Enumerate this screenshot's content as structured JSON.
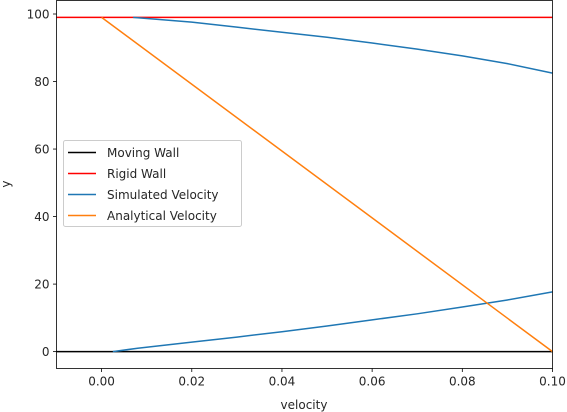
{
  "chart_data": {
    "type": "line",
    "title": "",
    "xlabel": "velocity",
    "ylabel": "y",
    "xlim": [
      -0.01,
      0.1
    ],
    "ylim": [
      -5,
      104
    ],
    "xticks": [
      0.0,
      0.02,
      0.04,
      0.06,
      0.08,
      0.1
    ],
    "xtick_labels": [
      "0.00",
      "0.02",
      "0.04",
      "0.06",
      "0.08",
      "0.10"
    ],
    "yticks": [
      0,
      20,
      40,
      60,
      80,
      100
    ],
    "ytick_labels": [
      "0",
      "20",
      "40",
      "60",
      "80",
      "100"
    ],
    "grid": false,
    "legend_position": "center-left",
    "series": [
      {
        "name": "Moving Wall",
        "color": "#000000",
        "segments": [
          {
            "x": [
              -0.01,
              0.1
            ],
            "y": [
              0,
              0
            ]
          }
        ]
      },
      {
        "name": "Rigid Wall",
        "color": "#ff0000",
        "segments": [
          {
            "x": [
              -0.01,
              0.1
            ],
            "y": [
              99,
              99
            ]
          }
        ]
      },
      {
        "name": "Simulated Velocity",
        "color": "#1f77b4",
        "segments": [
          {
            "x": [
              0.0025,
              0.008,
              0.02,
              0.03,
              0.04,
              0.05,
              0.06,
              0.07,
              0.08,
              0.09,
              0.1
            ],
            "y": [
              0,
              1,
              2.8,
              4.3,
              5.9,
              7.6,
              9.4,
              11.2,
              13.2,
              15.3,
              17.7
            ]
          },
          {
            "x": [
              0.007,
              0.02,
              0.03,
              0.04,
              0.05,
              0.06,
              0.07,
              0.08,
              0.09,
              0.1
            ],
            "y": [
              99,
              97.6,
              96.1,
              94.6,
              93.1,
              91.4,
              89.6,
              87.6,
              85.3,
              82.5
            ]
          }
        ]
      },
      {
        "name": "Analytical Velocity",
        "color": "#ff7f0e",
        "segments": [
          {
            "x": [
              0.0,
              0.1
            ],
            "y": [
              99,
              0
            ]
          }
        ]
      }
    ]
  }
}
